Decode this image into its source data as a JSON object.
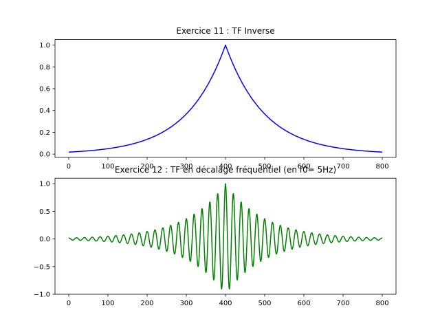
{
  "chart_data": [
    {
      "type": "line",
      "title": "Exercice 11 : TF Inverse",
      "xlabel": "",
      "ylabel": "",
      "xlim": [
        -35,
        835
      ],
      "ylim": [
        -0.03,
        1.05
      ],
      "xticks": [
        0,
        100,
        200,
        300,
        400,
        500,
        600,
        700,
        800
      ],
      "yticks": [
        0.0,
        0.2,
        0.4,
        0.6,
        0.8,
        1.0
      ],
      "ytick_labels": [
        "0.0",
        "0.2",
        "0.4",
        "0.6",
        "0.8",
        "1.0"
      ],
      "grid": false,
      "series": [
        {
          "color": "#0000ff",
          "shape": "exp(-|x-400|/100)",
          "x": [
            0,
            100,
            200,
            300,
            350,
            400,
            450,
            500,
            600,
            700,
            800
          ],
          "values": [
            0.018,
            0.05,
            0.135,
            0.368,
            0.607,
            1.0,
            0.607,
            0.368,
            0.135,
            0.05,
            0.018
          ]
        }
      ]
    },
    {
      "type": "line",
      "title": "Exercice 12 : TF en décalage fréquentiel (en f0= 5Hz)",
      "xlabel": "",
      "ylabel": "",
      "xlim": [
        -35,
        835
      ],
      "ylim": [
        -1.0,
        1.1
      ],
      "xticks": [
        0,
        100,
        200,
        300,
        400,
        500,
        600,
        700,
        800
      ],
      "yticks": [
        -1.0,
        -0.5,
        0.0,
        0.5,
        1.0
      ],
      "ytick_labels": [
        "−1.0",
        "−0.5",
        "0.0",
        "0.5",
        "1.0"
      ],
      "grid": false,
      "series": [
        {
          "color": "#008000",
          "shape": "exp(-|x-400|/100) * cos(2π·5·(x-400)/100)",
          "envelope_x": [
            0,
            100,
            200,
            300,
            400,
            500,
            600,
            700,
            800
          ],
          "envelope_values": [
            0.018,
            0.05,
            0.135,
            0.368,
            1.0,
            0.368,
            0.135,
            0.05,
            0.018
          ],
          "oscillation_period_x": 20
        }
      ]
    }
  ]
}
